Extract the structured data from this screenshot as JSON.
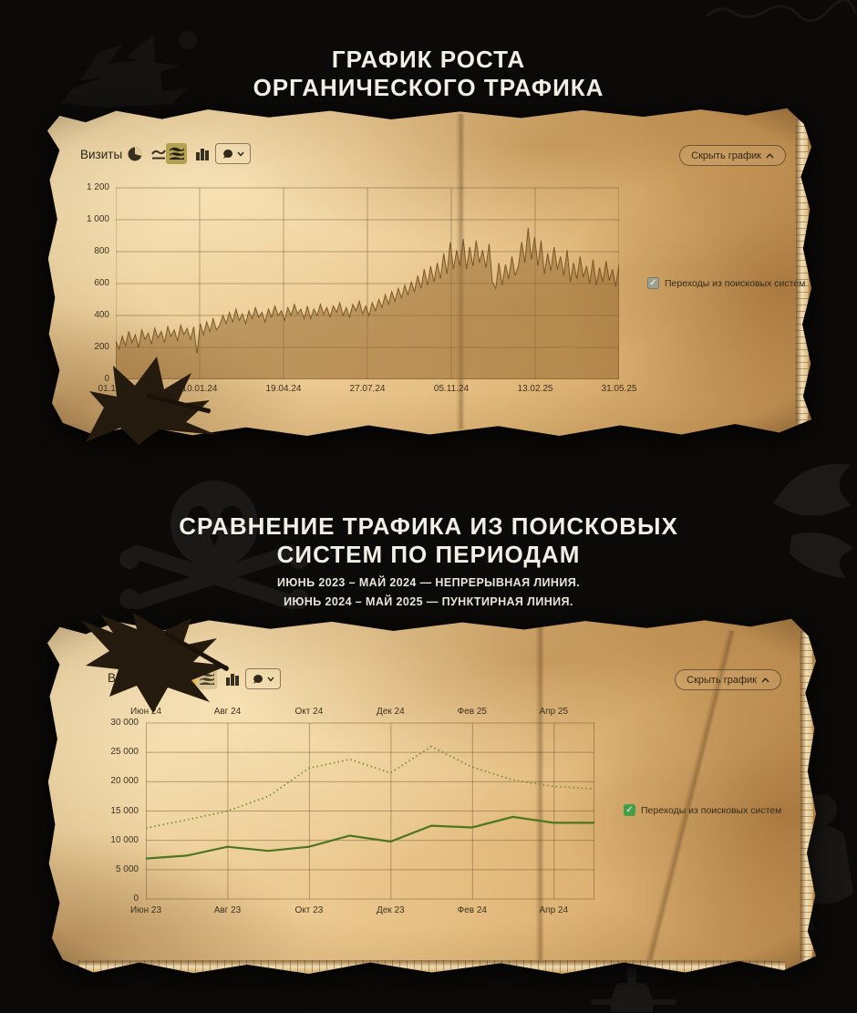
{
  "page_title": {
    "line1": "ГРАФИК РОСТА",
    "line2": "ОРГАНИЧЕСКОГО ТРАФИКА"
  },
  "section2": {
    "line1": "СРАВНЕНИЕ ТРАФИКА ИЗ ПОИСКОВЫХ",
    "line2": "СИСТЕМ ПО ПЕРИОДАМ",
    "sub1": "ИЮНЬ 2023 – МАЙ 2024 — НЕПРЕРЫВНАЯ ЛИНИЯ.",
    "sub2": "ИЮНЬ 2024 – МАЙ 2025 — ПУНКТИРНАЯ ЛИНИЯ."
  },
  "chart1_ui": {
    "metric": "Визиты",
    "hide": "Скрыть график",
    "legend": "Переходы из поисковых систем"
  },
  "chart2_ui": {
    "metric": "Визиты",
    "hide": "Скрыть график",
    "legend": "Переходы из поисковых систем"
  },
  "colors": {
    "area_fill": "rgba(148,104,47,0.55)",
    "area_stroke": "rgba(108,74,28,0.85)",
    "grid": "rgba(84,57,26,0.38)",
    "solid_line": "#4c761d",
    "dotted_line": "#74922e",
    "checkbox1": "#9ba18e",
    "checkbox2": "#43a047",
    "selected_icon_bg1": "#b2a14e",
    "selected_icon_bg2": "#eebb33"
  },
  "chart_data": [
    {
      "type": "area",
      "title": "ГРАФИК РОСТА ОРГАНИЧЕСКОГО ТРАФИКА",
      "metric": "Визиты",
      "series_name": "Переходы из поисковых систем",
      "ylim": [
        0,
        1200
      ],
      "y_ticks": [
        {
          "v": 1200,
          "label": "1 200"
        },
        {
          "v": 1000,
          "label": "1 000"
        },
        {
          "v": 800,
          "label": "800"
        },
        {
          "v": 600,
          "label": "600"
        },
        {
          "v": 400,
          "label": "400"
        },
        {
          "v": 200,
          "label": "200"
        },
        {
          "v": 0,
          "label": "0"
        }
      ],
      "x_ticks": [
        "01.10.23",
        "10.01.24",
        "19.04.24",
        "27.07.24",
        "05.11.24",
        "13.02.25",
        "31.05.25"
      ],
      "grid": true,
      "legend_position": "right",
      "values": [
        240,
        190,
        270,
        210,
        300,
        230,
        280,
        200,
        310,
        250,
        290,
        220,
        320,
        260,
        300,
        230,
        330,
        270,
        310,
        240,
        340,
        280,
        320,
        250,
        330,
        160,
        350,
        280,
        360,
        300,
        380,
        310,
        340,
        400,
        350,
        420,
        360,
        440,
        370,
        410,
        350,
        430,
        380,
        450,
        390,
        420,
        360,
        440,
        390,
        460,
        400,
        430,
        370,
        450,
        400,
        470,
        410,
        440,
        380,
        460,
        380,
        440,
        400,
        470,
        410,
        450,
        390,
        460,
        420,
        480,
        400,
        450,
        390,
        470,
        430,
        490,
        410,
        460,
        400,
        480,
        430,
        500,
        450,
        530,
        470,
        550,
        490,
        570,
        510,
        590,
        530,
        610,
        550,
        650,
        570,
        690,
        590,
        710,
        610,
        730,
        630,
        790,
        660,
        860,
        690,
        810,
        710,
        880,
        690,
        830,
        710,
        870,
        730,
        810,
        700,
        850,
        610,
        570,
        730,
        590,
        720,
        630,
        770,
        650,
        710,
        860,
        730,
        950,
        750,
        890,
        710,
        870,
        660,
        790,
        680,
        830,
        690,
        770,
        650,
        810,
        610,
        730,
        630,
        770,
        640,
        710,
        600,
        750,
        590,
        700,
        610,
        740,
        620,
        690,
        580,
        720
      ]
    },
    {
      "type": "line",
      "title": "СРАВНЕНИЕ ТРАФИКА ИЗ ПОИСКОВЫХ СИСТЕМ ПО ПЕРИОДАМ",
      "metric": "Визиты",
      "legend": "Переходы из поисковых систем",
      "ylim": [
        0,
        30000
      ],
      "y_ticks": [
        {
          "v": 30000,
          "label": "30 000"
        },
        {
          "v": 25000,
          "label": "25 000"
        },
        {
          "v": 20000,
          "label": "20 000"
        },
        {
          "v": 15000,
          "label": "15 000"
        },
        {
          "v": 10000,
          "label": "10 000"
        },
        {
          "v": 5000,
          "label": "5 000"
        },
        {
          "v": 0,
          "label": "0"
        }
      ],
      "x_ticks_top": [
        "Июн 24",
        "Авг 24",
        "Окт 24",
        "Дек 24",
        "Фев 25",
        "Апр 25"
      ],
      "x_ticks_bottom": [
        "Июн 23",
        "Авг 23",
        "Окт 23",
        "Дек 23",
        "Фев 24",
        "Апр 24"
      ],
      "grid": true,
      "series": [
        {
          "name": "Июнь 2023 – Май 2024",
          "style": "solid",
          "values": [
            6900,
            7400,
            8900,
            8200,
            8900,
            10800,
            9800,
            12500,
            12200,
            14000,
            13000,
            13000
          ]
        },
        {
          "name": "Июнь 2024 – Май 2025",
          "style": "dotted",
          "values": [
            12100,
            13500,
            15000,
            17500,
            22300,
            23800,
            21500,
            26000,
            22500,
            20300,
            19200,
            18800
          ]
        }
      ]
    }
  ]
}
